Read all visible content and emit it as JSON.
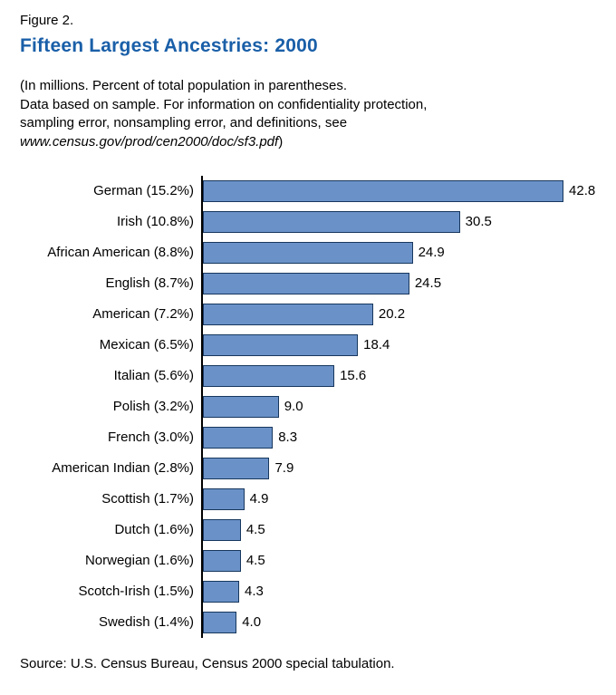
{
  "header": {
    "figure_label": "Figure 2.",
    "title": "Fifteen Largest Ancestries: 2000",
    "note_line1": "(In millions. Percent of total population in parentheses.",
    "note_line2": "Data based on sample.  For information on confidentiality protection,",
    "note_line3": "sampling error, nonsampling error, and definitions, see",
    "note_url": "www.census.gov/prod/cen2000/doc/sf3.pdf",
    "note_close": ")"
  },
  "chart_data": {
    "type": "bar",
    "orientation": "horizontal",
    "title": "Fifteen Largest Ancestries: 2000",
    "xlabel": "",
    "ylabel": "",
    "xlim": [
      0,
      46
    ],
    "grid": false,
    "legend": "none",
    "bar_color": "#6B92C8",
    "bar_border_color": "#17375E",
    "categories": [
      "German (15.2%)",
      "Irish (10.8%)",
      "African American (8.8%)",
      "English (8.7%)",
      "American (7.2%)",
      "Mexican (6.5%)",
      "Italian (5.6%)",
      "Polish (3.2%)",
      "French (3.0%)",
      "American Indian (2.8%)",
      "Scottish (1.7%)",
      "Dutch (1.6%)",
      "Norwegian (1.6%)",
      "Scotch-Irish (1.5%)",
      "Swedish  (1.4%)"
    ],
    "values": [
      42.8,
      30.5,
      24.9,
      24.5,
      20.2,
      18.4,
      15.6,
      9.0,
      8.3,
      7.9,
      4.9,
      4.5,
      4.5,
      4.3,
      4.0
    ],
    "value_labels": [
      "42.8",
      "30.5",
      "24.9",
      "24.5",
      "20.2",
      "18.4",
      "15.6",
      "9.0",
      "8.3",
      "7.9",
      "4.9",
      "4.5",
      "4.5",
      "4.3",
      "4.0"
    ]
  },
  "footer": {
    "source": "Source:  U.S. Census Bureau, Census 2000 special tabulation."
  }
}
